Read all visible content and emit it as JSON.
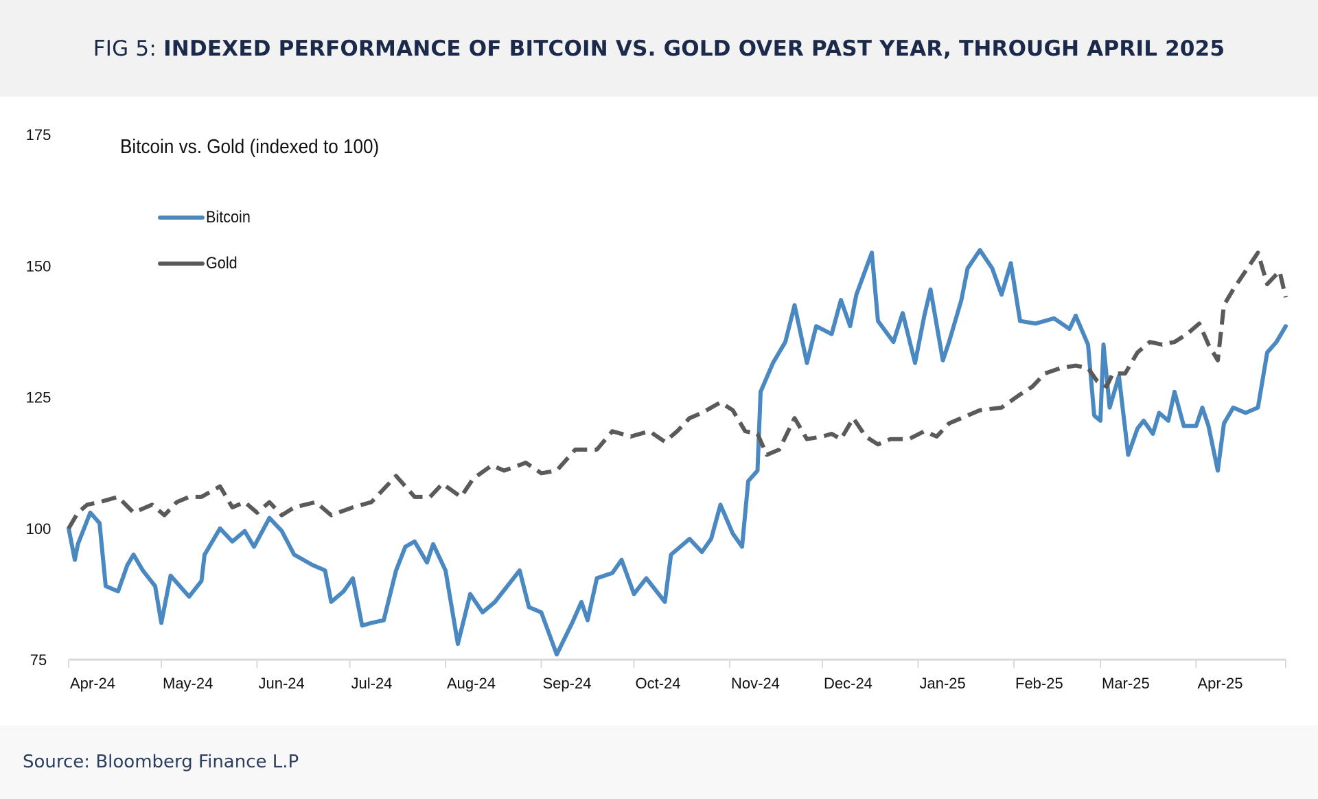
{
  "header": {
    "fig_label": "FIG 5:",
    "title": "INDEXED PERFORMANCE OF BITCOIN VS. GOLD OVER PAST YEAR, THROUGH APRIL 2025"
  },
  "footer": {
    "source": "Source: Bloomberg Finance L.P"
  },
  "chart_data": {
    "type": "line",
    "title": "Bitcoin vs. Gold (indexed to 100)",
    "xlabel": "",
    "ylabel": "",
    "ylim": [
      75,
      175
    ],
    "yticks": [
      75,
      100,
      125,
      150,
      175
    ],
    "xlim": [
      "2024-04-01",
      "2025-04-30"
    ],
    "xticks": [
      "2024-04-01",
      "2024-05-01",
      "2024-06-01",
      "2024-07-01",
      "2024-08-01",
      "2024-09-01",
      "2024-10-01",
      "2024-11-01",
      "2024-12-01",
      "2025-01-01",
      "2025-02-01",
      "2025-03-01",
      "2025-04-01"
    ],
    "xtick_labels": [
      "Apr-24",
      "May-24",
      "Jun-24",
      "Jul-24",
      "Aug-24",
      "Sep-24",
      "Oct-24",
      "Nov-24",
      "Dec-24",
      "Jan-25",
      "Feb-25",
      "Mar-25",
      "Apr-25"
    ],
    "grid": false,
    "legend_position": "top-left",
    "series": [
      {
        "name": "Bitcoin",
        "color": "#4a88c2",
        "style": "solid",
        "x": [
          "2024-04-01",
          "2024-04-03",
          "2024-04-04",
          "2024-04-08",
          "2024-04-11",
          "2024-04-13",
          "2024-04-17",
          "2024-04-20",
          "2024-04-22",
          "2024-04-25",
          "2024-04-29",
          "2024-05-01",
          "2024-05-04",
          "2024-05-07",
          "2024-05-10",
          "2024-05-14",
          "2024-05-15",
          "2024-05-20",
          "2024-05-24",
          "2024-05-28",
          "2024-05-31",
          "2024-06-05",
          "2024-06-09",
          "2024-06-13",
          "2024-06-19",
          "2024-06-23",
          "2024-06-25",
          "2024-06-29",
          "2024-07-02",
          "2024-07-05",
          "2024-07-08",
          "2024-07-12",
          "2024-07-16",
          "2024-07-19",
          "2024-07-22",
          "2024-07-26",
          "2024-07-28",
          "2024-08-01",
          "2024-08-05",
          "2024-08-09",
          "2024-08-13",
          "2024-08-17",
          "2024-08-21",
          "2024-08-25",
          "2024-08-28",
          "2024-09-01",
          "2024-09-06",
          "2024-09-11",
          "2024-09-14",
          "2024-09-16",
          "2024-09-19",
          "2024-09-24",
          "2024-09-27",
          "2024-10-01",
          "2024-10-05",
          "2024-10-11",
          "2024-10-13",
          "2024-10-19",
          "2024-10-23",
          "2024-10-26",
          "2024-10-29",
          "2024-11-02",
          "2024-11-05",
          "2024-11-07",
          "2024-11-10",
          "2024-11-11",
          "2024-11-15",
          "2024-11-19",
          "2024-11-22",
          "2024-11-26",
          "2024-11-29",
          "2024-12-04",
          "2024-12-07",
          "2024-12-10",
          "2024-12-12",
          "2024-12-17",
          "2024-12-19",
          "2024-12-24",
          "2024-12-27",
          "2024-12-31",
          "2025-01-03",
          "2025-01-05",
          "2025-01-09",
          "2025-01-11",
          "2025-01-15",
          "2025-01-17",
          "2025-01-21",
          "2025-01-25",
          "2025-01-28",
          "2025-01-31",
          "2025-02-03",
          "2025-02-08",
          "2025-02-14",
          "2025-02-19",
          "2025-02-21",
          "2025-02-25",
          "2025-02-27",
          "2025-03-01",
          "2025-03-02",
          "2025-03-04",
          "2025-03-07",
          "2025-03-10",
          "2025-03-13",
          "2025-03-15",
          "2025-03-18",
          "2025-03-20",
          "2025-03-23",
          "2025-03-25",
          "2025-03-28",
          "2025-04-01",
          "2025-04-03",
          "2025-04-05",
          "2025-04-08",
          "2025-04-10",
          "2025-04-13",
          "2025-04-17",
          "2025-04-21",
          "2025-04-24",
          "2025-04-27",
          "2025-04-30"
        ],
        "values": [
          100,
          94,
          97,
          103,
          101,
          89,
          88,
          93,
          95,
          92,
          89,
          82,
          91,
          89,
          87,
          90,
          95,
          100,
          97.5,
          99.5,
          96.5,
          102,
          99.5,
          95,
          93,
          92,
          86,
          88,
          90.5,
          81.5,
          82,
          82.5,
          92,
          96.5,
          97.5,
          93.5,
          97,
          92,
          78,
          87.5,
          84,
          86,
          89,
          92,
          85,
          84,
          76,
          82,
          86,
          82.5,
          90.5,
          91.5,
          94,
          87.5,
          90.5,
          86,
          95,
          98,
          95.5,
          98,
          104.5,
          99,
          96.5,
          109,
          111,
          126,
          131.5,
          135.5,
          142.5,
          131.5,
          138.5,
          137,
          143.5,
          138.5,
          144.5,
          152.5,
          139.5,
          135.5,
          141,
          131.5,
          140.5,
          145.5,
          132,
          135.5,
          143.5,
          149.5,
          153,
          149.5,
          144.5,
          150.5,
          139.5,
          139,
          140,
          138,
          140.5,
          135,
          121.5,
          120.5,
          135,
          123,
          129,
          114,
          119,
          120.5,
          118,
          122,
          120.5,
          126,
          119.5,
          119.5,
          123,
          119.5,
          111,
          120,
          123,
          122,
          123,
          133.5,
          135.5,
          138.5
        ]
      },
      {
        "name": "Gold",
        "color": "#5a5a5a",
        "style": "dashed",
        "x": [
          "2024-04-01",
          "2024-04-04",
          "2024-04-07",
          "2024-04-11",
          "2024-04-17",
          "2024-04-22",
          "2024-04-28",
          "2024-05-02",
          "2024-05-06",
          "2024-05-10",
          "2024-05-14",
          "2024-05-20",
          "2024-05-24",
          "2024-05-28",
          "2024-06-01",
          "2024-06-05",
          "2024-06-09",
          "2024-06-13",
          "2024-06-20",
          "2024-06-25",
          "2024-07-02",
          "2024-07-08",
          "2024-07-16",
          "2024-07-22",
          "2024-07-27",
          "2024-07-31",
          "2024-08-06",
          "2024-08-10",
          "2024-08-16",
          "2024-08-20",
          "2024-08-27",
          "2024-09-01",
          "2024-09-06",
          "2024-09-12",
          "2024-09-19",
          "2024-09-24",
          "2024-09-30",
          "2024-10-06",
          "2024-10-11",
          "2024-10-15",
          "2024-10-19",
          "2024-10-23",
          "2024-10-29",
          "2024-11-02",
          "2024-11-06",
          "2024-11-10",
          "2024-11-13",
          "2024-11-17",
          "2024-11-22",
          "2024-11-26",
          "2024-12-01",
          "2024-12-04",
          "2024-12-07",
          "2024-12-11",
          "2024-12-15",
          "2024-12-19",
          "2024-12-23",
          "2024-12-29",
          "2025-01-03",
          "2025-01-07",
          "2025-01-11",
          "2025-01-17",
          "2025-01-21",
          "2025-01-28",
          "2025-02-03",
          "2025-02-07",
          "2025-02-11",
          "2025-02-16",
          "2025-02-21",
          "2025-02-25",
          "2025-02-28",
          "2025-03-03",
          "2025-03-05",
          "2025-03-09",
          "2025-03-13",
          "2025-03-17",
          "2025-03-21",
          "2025-03-25",
          "2025-03-29",
          "2025-04-02",
          "2025-04-05",
          "2025-04-08",
          "2025-04-10",
          "2025-04-13",
          "2025-04-17",
          "2025-04-21",
          "2025-04-24",
          "2025-04-28",
          "2025-04-30"
        ],
        "values": [
          100,
          103,
          104.5,
          105,
          106,
          103,
          104.5,
          102.5,
          105,
          106,
          106,
          108,
          104,
          105,
          103,
          105,
          102.5,
          104,
          105,
          102.5,
          104,
          105,
          110,
          106,
          106,
          108.5,
          106,
          109.5,
          112,
          111,
          112.5,
          110.5,
          111,
          115,
          115,
          118.5,
          117.5,
          118.5,
          116.5,
          118.5,
          121,
          122,
          124,
          122.5,
          118.5,
          118,
          114,
          115,
          121,
          117,
          117.5,
          118,
          117,
          121,
          117.5,
          116,
          117,
          117,
          118.5,
          117.5,
          120,
          121.5,
          122.5,
          123,
          125.5,
          127,
          129.5,
          130.5,
          131,
          130.5,
          128,
          127,
          129.5,
          129.5,
          133.5,
          135.5,
          135,
          135.5,
          137,
          139,
          135,
          132,
          142.5,
          145.5,
          149,
          152.5,
          146.5,
          149,
          144
        ]
      }
    ]
  }
}
